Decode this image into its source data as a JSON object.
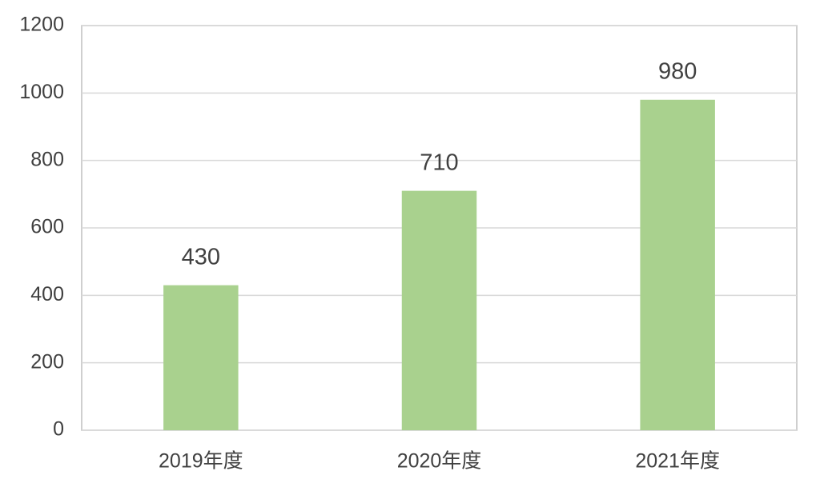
{
  "chart_data": {
    "type": "bar",
    "categories": [
      "2019年度",
      "2020年度",
      "2021年度"
    ],
    "values": [
      430,
      710,
      980
    ],
    "color": "#a9d18e",
    "ylim": [
      0,
      1200
    ],
    "yticks": [
      0,
      200,
      400,
      600,
      800,
      1000,
      1200
    ],
    "grid": true
  }
}
